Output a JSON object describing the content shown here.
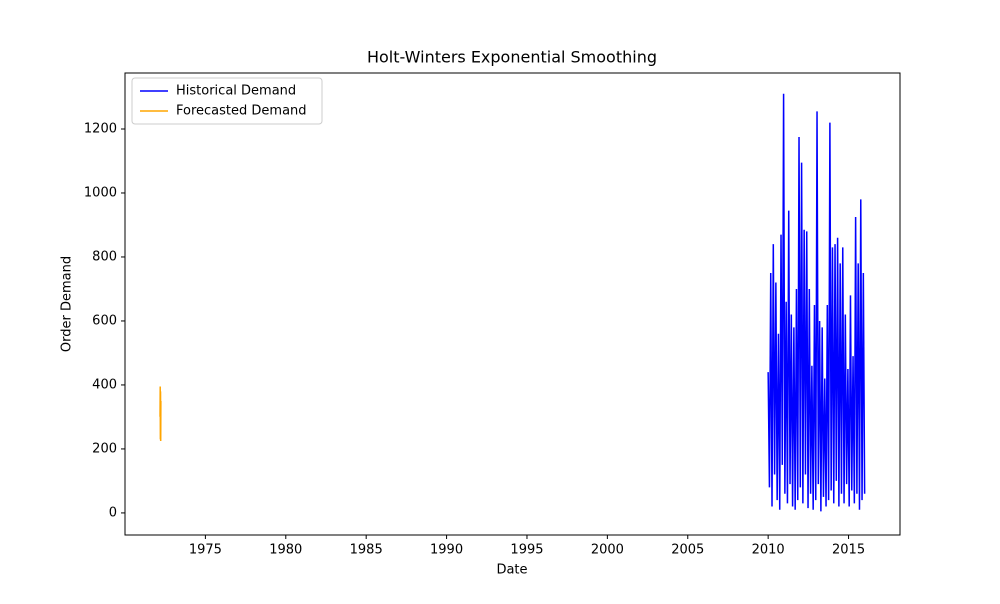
{
  "chart_data": {
    "type": "line",
    "title": "Holt-Winters Exponential Smoothing",
    "x_label": "Date",
    "y_label": "Order Demand",
    "xlim": [
      1970.0,
      2018.2
    ],
    "xticks": [
      1975,
      1980,
      1985,
      1990,
      1995,
      2000,
      2005,
      2010,
      2015
    ],
    "ylim": [
      -69,
      1375
    ],
    "yticks": [
      0,
      200,
      400,
      600,
      800,
      1000,
      1200
    ],
    "legend": "upper-left",
    "grid": false,
    "series": [
      {
        "name": "Historical Demand",
        "color": "#0000ff",
        "x": [
          2010.0,
          2010.08,
          2010.16,
          2010.24,
          2010.32,
          2010.4,
          2010.48,
          2010.56,
          2010.64,
          2010.72,
          2010.8,
          2010.88,
          2010.96,
          2011.04,
          2011.12,
          2011.2,
          2011.28,
          2011.36,
          2011.44,
          2011.52,
          2011.6,
          2011.68,
          2011.76,
          2011.84,
          2011.92,
          2012.0,
          2012.08,
          2012.16,
          2012.24,
          2012.32,
          2012.4,
          2012.48,
          2012.56,
          2012.64,
          2012.72,
          2012.8,
          2012.88,
          2012.96,
          2013.04,
          2013.12,
          2013.2,
          2013.28,
          2013.36,
          2013.44,
          2013.52,
          2013.6,
          2013.68,
          2013.76,
          2013.84,
          2013.92,
          2014.0,
          2014.08,
          2014.16,
          2014.24,
          2014.32,
          2014.4,
          2014.48,
          2014.56,
          2014.64,
          2014.72,
          2014.8,
          2014.88,
          2014.96,
          2015.04,
          2015.12,
          2015.2,
          2015.28,
          2015.36,
          2015.44,
          2015.52,
          2015.6,
          2015.68,
          2015.76,
          2015.84,
          2015.92,
          2016.0
        ],
        "values": [
          440,
          80,
          750,
          20,
          840,
          120,
          720,
          40,
          560,
          10,
          870,
          150,
          1310,
          60,
          660,
          30,
          945,
          90,
          620,
          20,
          580,
          10,
          700,
          40,
          1175,
          80,
          1095,
          30,
          885,
          120,
          880,
          15,
          700,
          60,
          460,
          10,
          650,
          40,
          1255,
          90,
          600,
          5,
          580,
          50,
          420,
          20,
          650,
          40,
          1220,
          70,
          830,
          30,
          840,
          100,
          860,
          20,
          780,
          60,
          830,
          30,
          620,
          90,
          450,
          20,
          680,
          70,
          490,
          30,
          925,
          60,
          780,
          10,
          980,
          40,
          750,
          60
        ]
      },
      {
        "name": "Forecasted Demand",
        "color": "#ffa500",
        "x": [
          1972.18,
          1972.19,
          1972.2,
          1972.21,
          1972.22,
          1972.23
        ],
        "values": [
          300,
          395,
          230,
          380,
          225,
          350
        ]
      }
    ]
  }
}
